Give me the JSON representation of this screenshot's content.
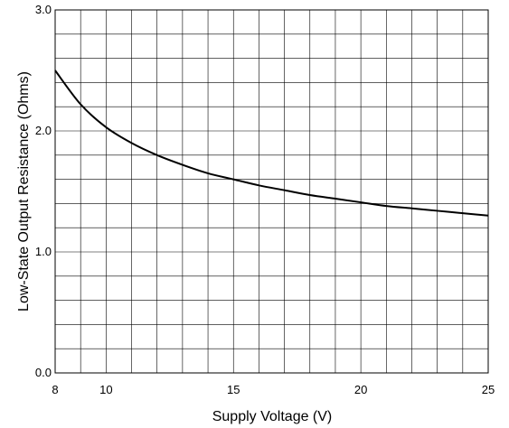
{
  "chart_data": {
    "type": "line",
    "xlabel": "Supply Voltage (V)",
    "ylabel": "Low-State Output Resistance (Ohms)",
    "xlim": [
      8,
      25
    ],
    "ylim": [
      0,
      3.0
    ],
    "x_ticks": [
      8,
      10,
      15,
      20,
      25
    ],
    "x_tick_labels": [
      "8",
      "10",
      "15",
      "20",
      "25"
    ],
    "y_ticks": [
      0,
      1,
      2,
      3
    ],
    "y_tick_labels": [
      "0.0",
      "1.0",
      "2.0",
      "3.0"
    ],
    "x_grid_step": 1,
    "y_grid_step": 0.2,
    "grid": true,
    "series": [
      {
        "color": "#000000",
        "x": [
          8,
          9,
          10,
          11,
          12,
          13,
          14,
          15,
          16,
          17,
          18,
          19,
          20,
          21,
          22,
          23,
          24,
          25
        ],
        "y": [
          2.5,
          2.22,
          2.03,
          1.9,
          1.8,
          1.72,
          1.65,
          1.6,
          1.55,
          1.51,
          1.47,
          1.44,
          1.41,
          1.38,
          1.36,
          1.34,
          1.32,
          1.3
        ]
      }
    ]
  }
}
